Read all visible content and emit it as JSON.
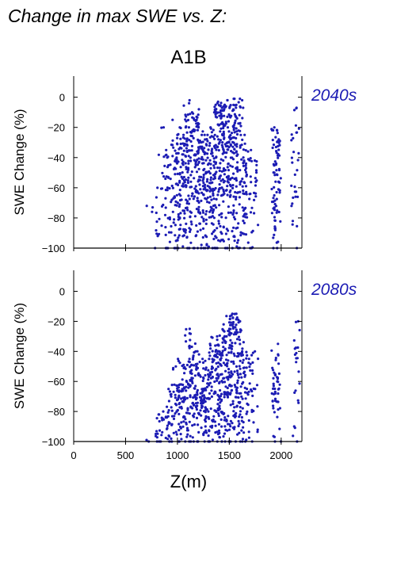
{
  "figure": {
    "header": "Change in max SWE vs. Z:",
    "scenario": "A1B",
    "xlabel": "Z(m)"
  },
  "colors": {
    "points": "#1c1cb4",
    "period_label": "#1c1cb4",
    "axis": "#000000"
  },
  "chart_data": [
    {
      "type": "scatter",
      "title": "A1B",
      "period_label": "2040s",
      "xlabel": "",
      "ylabel": "SWE Change (%)",
      "xlim": [
        0,
        2200
      ],
      "ylim": [
        -100,
        14
      ],
      "xticks": [
        0,
        500,
        1000,
        1500,
        2000
      ],
      "yticks": [
        0,
        -20,
        -40,
        -60,
        -80,
        -100
      ],
      "show_xtick_labels": false,
      "grid": false,
      "columns": [
        {
          "x": 735,
          "ymin": -73,
          "ymax": -72,
          "n": 1
        },
        {
          "x": 790,
          "ymin": -92,
          "ymax": -76,
          "n": 5
        },
        {
          "x": 820,
          "ymin": -100,
          "ymax": -60,
          "n": 8
        },
        {
          "x": 855,
          "ymin": -100,
          "ymax": -35,
          "n": 10
        },
        {
          "x": 880,
          "ymin": -100,
          "ymax": -20,
          "n": 12
        },
        {
          "x": 910,
          "ymin": -100,
          "ymax": -40,
          "n": 14
        },
        {
          "x": 940,
          "ymin": -100,
          "ymax": -15,
          "n": 16
        },
        {
          "x": 970,
          "ymin": -100,
          "ymax": -25,
          "n": 22
        },
        {
          "x": 1000,
          "ymin": -100,
          "ymax": -20,
          "n": 28
        },
        {
          "x": 1030,
          "ymin": -100,
          "ymax": -25,
          "n": 30
        },
        {
          "x": 1060,
          "ymin": -100,
          "ymax": -20,
          "n": 32
        },
        {
          "x": 1085,
          "ymin": -100,
          "ymax": -2,
          "n": 34
        },
        {
          "x": 1115,
          "ymin": -100,
          "ymax": -10,
          "n": 34
        },
        {
          "x": 1145,
          "ymin": -100,
          "ymax": -20,
          "n": 34
        },
        {
          "x": 1175,
          "ymin": -100,
          "ymax": -8,
          "n": 34
        },
        {
          "x": 1200,
          "ymin": -100,
          "ymax": -15,
          "n": 32
        },
        {
          "x": 1230,
          "ymin": -100,
          "ymax": -20,
          "n": 32
        },
        {
          "x": 1255,
          "ymin": -100,
          "ymax": -25,
          "n": 30
        },
        {
          "x": 1285,
          "ymin": -100,
          "ymax": -25,
          "n": 32
        },
        {
          "x": 1320,
          "ymin": -100,
          "ymax": -25,
          "n": 34
        },
        {
          "x": 1345,
          "ymin": -100,
          "ymax": -20,
          "n": 34
        },
        {
          "x": 1370,
          "ymin": -100,
          "ymax": -5,
          "n": 36
        },
        {
          "x": 1395,
          "ymin": -100,
          "ymax": -3,
          "n": 36
        },
        {
          "x": 1420,
          "ymin": -100,
          "ymax": -10,
          "n": 38
        },
        {
          "x": 1450,
          "ymin": -100,
          "ymax": -2,
          "n": 40
        },
        {
          "x": 1480,
          "ymin": -100,
          "ymax": -5,
          "n": 40
        },
        {
          "x": 1510,
          "ymin": -100,
          "ymax": -2,
          "n": 40
        },
        {
          "x": 1540,
          "ymin": -100,
          "ymax": -1,
          "n": 40
        },
        {
          "x": 1570,
          "ymin": -100,
          "ymax": -1,
          "n": 40
        },
        {
          "x": 1600,
          "ymin": -100,
          "ymax": -2,
          "n": 38
        },
        {
          "x": 1640,
          "ymin": -100,
          "ymax": -25,
          "n": 30
        },
        {
          "x": 1680,
          "ymin": -100,
          "ymax": -35,
          "n": 26
        },
        {
          "x": 1740,
          "ymin": -100,
          "ymax": -42,
          "n": 20
        },
        {
          "x": 1945,
          "ymin": -100,
          "ymax": -20,
          "n": 44
        },
        {
          "x": 1960,
          "ymin": -100,
          "ymax": -28,
          "n": 36
        },
        {
          "x": 2135,
          "ymin": -100,
          "ymax": -7,
          "n": 30
        }
      ]
    },
    {
      "type": "scatter",
      "title": "",
      "period_label": "2080s",
      "xlabel": "Z(m)",
      "ylabel": "SWE Change (%)",
      "xlim": [
        0,
        2200
      ],
      "ylim": [
        -100,
        14
      ],
      "xticks": [
        0,
        500,
        1000,
        1500,
        2000
      ],
      "yticks": [
        0,
        -20,
        -40,
        -60,
        -80,
        -100
      ],
      "show_xtick_labels": true,
      "grid": false,
      "columns": [
        {
          "x": 720,
          "ymin": -100,
          "ymax": -99,
          "n": 1
        },
        {
          "x": 800,
          "ymin": -100,
          "ymax": -95,
          "n": 3
        },
        {
          "x": 830,
          "ymin": -100,
          "ymax": -82,
          "n": 8
        },
        {
          "x": 860,
          "ymin": -100,
          "ymax": -82,
          "n": 10
        },
        {
          "x": 890,
          "ymin": -100,
          "ymax": -80,
          "n": 10
        },
        {
          "x": 920,
          "ymin": -100,
          "ymax": -65,
          "n": 12
        },
        {
          "x": 950,
          "ymin": -100,
          "ymax": -70,
          "n": 14
        },
        {
          "x": 980,
          "ymin": -100,
          "ymax": -50,
          "n": 18
        },
        {
          "x": 1010,
          "ymin": -100,
          "ymax": -62,
          "n": 20
        },
        {
          "x": 1040,
          "ymin": -100,
          "ymax": -45,
          "n": 24
        },
        {
          "x": 1070,
          "ymin": -100,
          "ymax": -62,
          "n": 24
        },
        {
          "x": 1095,
          "ymin": -100,
          "ymax": -25,
          "n": 26
        },
        {
          "x": 1125,
          "ymin": -100,
          "ymax": -45,
          "n": 26
        },
        {
          "x": 1155,
          "ymin": -100,
          "ymax": -28,
          "n": 28
        },
        {
          "x": 1185,
          "ymin": -100,
          "ymax": -40,
          "n": 26
        },
        {
          "x": 1215,
          "ymin": -100,
          "ymax": -50,
          "n": 26
        },
        {
          "x": 1245,
          "ymin": -100,
          "ymax": -45,
          "n": 26
        },
        {
          "x": 1275,
          "ymin": -100,
          "ymax": -65,
          "n": 24
        },
        {
          "x": 1305,
          "ymin": -100,
          "ymax": -45,
          "n": 28
        },
        {
          "x": 1335,
          "ymin": -100,
          "ymax": -35,
          "n": 30
        },
        {
          "x": 1365,
          "ymin": -100,
          "ymax": -30,
          "n": 30
        },
        {
          "x": 1395,
          "ymin": -100,
          "ymax": -40,
          "n": 30
        },
        {
          "x": 1420,
          "ymin": -100,
          "ymax": -22,
          "n": 34
        },
        {
          "x": 1450,
          "ymin": -100,
          "ymax": -30,
          "n": 34
        },
        {
          "x": 1480,
          "ymin": -100,
          "ymax": -25,
          "n": 36
        },
        {
          "x": 1510,
          "ymin": -100,
          "ymax": -15,
          "n": 38
        },
        {
          "x": 1540,
          "ymin": -100,
          "ymax": -16,
          "n": 38
        },
        {
          "x": 1570,
          "ymin": -100,
          "ymax": -15,
          "n": 38
        },
        {
          "x": 1600,
          "ymin": -100,
          "ymax": -20,
          "n": 34
        },
        {
          "x": 1640,
          "ymin": -100,
          "ymax": -40,
          "n": 28
        },
        {
          "x": 1690,
          "ymin": -100,
          "ymax": -45,
          "n": 22
        },
        {
          "x": 1740,
          "ymin": -100,
          "ymax": -40,
          "n": 18
        },
        {
          "x": 1945,
          "ymin": -100,
          "ymax": -35,
          "n": 30
        },
        {
          "x": 1960,
          "ymin": -100,
          "ymax": -60,
          "n": 20
        },
        {
          "x": 2140,
          "ymin": -100,
          "ymax": -20,
          "n": 22
        }
      ]
    }
  ]
}
